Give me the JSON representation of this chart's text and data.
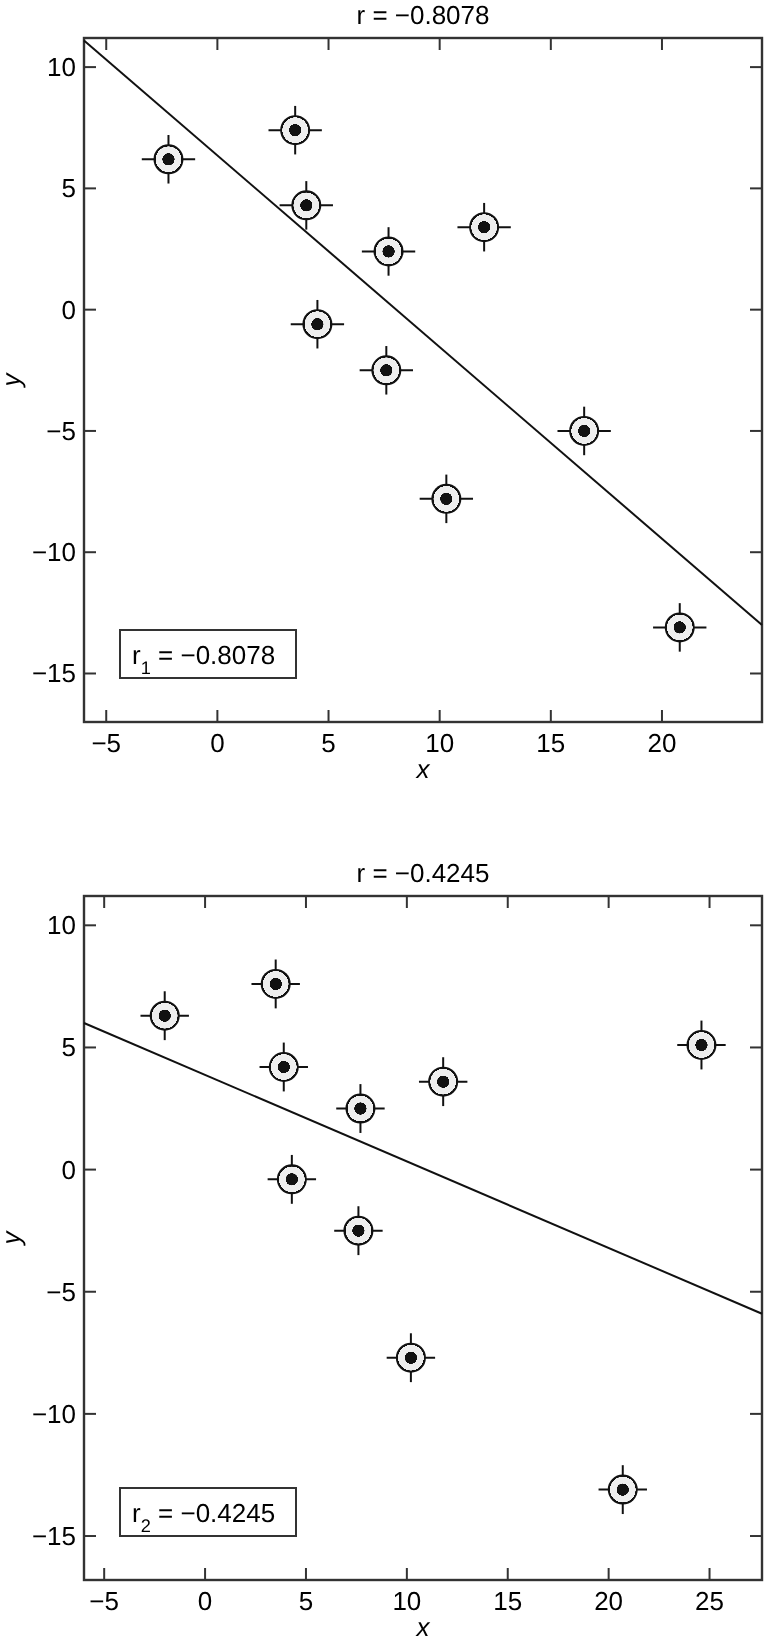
{
  "chart_data": [
    {
      "type": "scatter",
      "title": "r = −0.8078",
      "xlabel": "x",
      "ylabel": "y",
      "xlim": [
        -6,
        24.5
      ],
      "ylim": [
        -17,
        11.2
      ],
      "xticks": [
        -5,
        0,
        5,
        10,
        15,
        20
      ],
      "yticks": [
        -15,
        -10,
        -5,
        0,
        5,
        10
      ],
      "grid": false,
      "annotations": [
        "r$_{1}$ = −0.8078"
      ],
      "series": [
        {
          "marker": "circle",
          "color": "#111111",
          "x": [
            -2.2,
            3.5,
            4.0,
            4.5,
            7.7,
            7.6,
            10.3,
            12.0,
            16.5,
            20.8
          ],
          "values": [
            6.2,
            7.4,
            4.3,
            -0.6,
            2.4,
            -2.5,
            -7.8,
            3.4,
            -5.0,
            -13.1
          ],
          "errors": [
            1,
            1,
            1,
            1,
            1,
            1,
            1,
            1,
            1,
            1
          ],
          "xerrors": [
            1.2,
            1.2,
            1.2,
            1.2,
            1.2,
            1.2,
            1.2,
            1.2,
            1.2,
            1.2
          ]
        },
        {
          "type": "line",
          "color": "#111111",
          "x": [
            -6,
            24.5
          ],
          "values": [
            11.1,
            -13.0
          ],
          "line_style": "solid",
          "marker": "none"
        }
      ]
    },
    {
      "type": "scatter",
      "title": "r = −0.4245",
      "xlabel": "x",
      "ylabel": "y",
      "xlim": [
        -6,
        27.6
      ],
      "ylim": [
        -16.8,
        11.2
      ],
      "xticks": [
        -5,
        0,
        5,
        10,
        15,
        20,
        25
      ],
      "yticks": [
        -15,
        -10,
        -5,
        0,
        5,
        10
      ],
      "grid": false,
      "annotations": [
        "r$_{2}$ = −0.4245"
      ],
      "series": [
        {
          "marker": "circle",
          "color": "#111111",
          "x": [
            -2.0,
            3.5,
            3.9,
            4.3,
            7.7,
            7.6,
            10.2,
            11.8,
            20.7,
            24.6
          ],
          "values": [
            6.3,
            7.6,
            4.2,
            -0.4,
            2.5,
            -2.5,
            -7.7,
            3.6,
            -13.1,
            5.1
          ],
          "errors": [
            1,
            1,
            1,
            1,
            1,
            1,
            1,
            1,
            1,
            1
          ],
          "xerrors": [
            1.2,
            1.2,
            1.2,
            1.2,
            1.2,
            1.2,
            1.2,
            1.2,
            1.2,
            1.2
          ]
        },
        {
          "type": "line",
          "color": "#111111",
          "x": [
            -6,
            27.6
          ],
          "values": [
            6.0,
            -5.9
          ],
          "line_style": "solid",
          "marker": "none"
        }
      ]
    }
  ]
}
